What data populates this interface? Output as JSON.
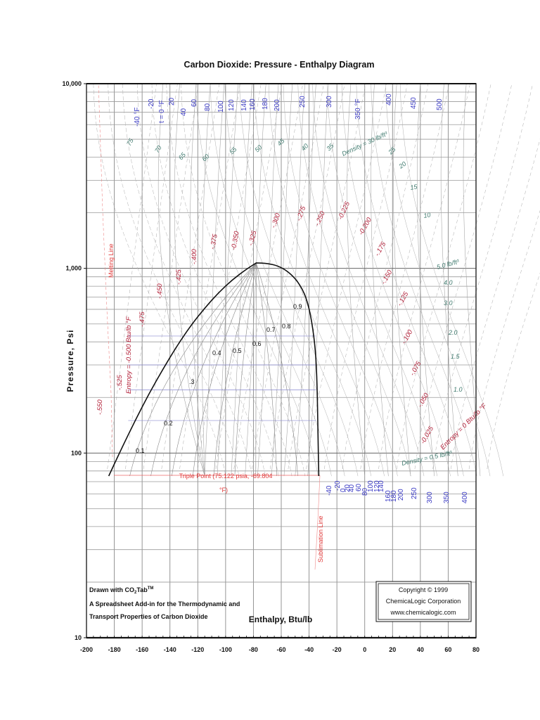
{
  "chart_data": {
    "type": "line",
    "title": "Carbon Dioxide: Pressure - Enthalpy Diagram",
    "xlabel": "Enthalpy, Btu/lb",
    "ylabel": "Pressure, Psi",
    "xlim": [
      -200,
      80
    ],
    "ylim": [
      10,
      10000
    ],
    "yscale": "log",
    "grid": true,
    "x_ticks": [
      "-200",
      "-180",
      "-160",
      "-140",
      "-120",
      "-100",
      "-80",
      "-60",
      "-40",
      "-20",
      "0",
      "20",
      "40",
      "60",
      "80"
    ],
    "y_ticks": [
      "10",
      "100",
      "1,000",
      "10,000"
    ],
    "saturation_dome": {
      "liquid": {
        "h": [
          -184,
          -175,
          -165,
          -155,
          -145,
          -135,
          -125,
          -115,
          -105,
          -95,
          -85,
          -78
        ],
        "P": [
          75.1,
          105,
          150,
          210,
          285,
          380,
          490,
          610,
          740,
          870,
          990,
          1070
        ]
      },
      "vapor": {
        "h": [
          -78,
          -70,
          -62,
          -55,
          -48,
          -42,
          -38,
          -35,
          -34,
          -33.5,
          -33
        ],
        "P": [
          1070,
          1065,
          1030,
          960,
          850,
          700,
          520,
          340,
          200,
          110,
          75.1
        ]
      }
    },
    "quality_labels": [
      "0.1",
      "0.2",
      ".3",
      "0.4",
      "0.5",
      "0.6",
      "0.7",
      "0.8",
      "0.9"
    ],
    "isotherm_labels_top": [
      "-40 °F",
      "-20",
      "t = 0 °F",
      "20",
      "40",
      "60",
      "80",
      "100",
      "120",
      "140",
      "160",
      "180",
      "200",
      "250",
      "300",
      "350 °F",
      "400",
      "450",
      "500"
    ],
    "isotherm_labels_bottom": [
      "-40",
      "-20",
      "0",
      "20",
      "40",
      "60",
      "80",
      "100",
      "120",
      "140",
      "160",
      "180",
      "200",
      "250",
      "300",
      "350",
      "400"
    ],
    "density_labels": [
      "75",
      "70",
      "65",
      "60",
      "55",
      "50",
      "45",
      "40",
      "35",
      "Density = 30 lb/ft³",
      "25",
      "20",
      "15",
      "10",
      "5.0 lb/ft³",
      "4.0",
      "3.0",
      "2.0",
      "1.5",
      "1.0",
      "Density = 0.5 lb/ft³"
    ],
    "entropy_labels": [
      "-.550",
      "-.525",
      "Entropy = -0.500 Btu/lb °F",
      "-.475",
      "-.450",
      "-.425",
      "-.400",
      "-.375",
      "-0.350",
      "-.325",
      "-.300",
      "-.275",
      "-.250",
      "-0.225",
      "-0.200",
      "-.175",
      "-.150",
      "-.125",
      "-.100",
      "-.075",
      "-.050",
      "-0.025",
      "Entropy = 0 Btu/lb °F"
    ],
    "annotations": [
      "Melting Line",
      "Sublimation Line",
      "Triple Point (75.122 psia, -69.804 °F)"
    ],
    "triple_point": {
      "P_psia": 75.122,
      "T_F": -69.804
    }
  },
  "footer": {
    "drawn_with_line1": "Drawn with CO",
    "drawn_with_sub": "2",
    "drawn_with_tab": "Tab",
    "drawn_with_tm": "TM",
    "drawn_with_line2": "A Spreadsheet Add-in for the Thermodynamic and",
    "drawn_with_line3": "Transport Properties of Carbon Dioxide",
    "copyright_line1": "Copyright © 1999",
    "copyright_line2": "ChemicaLogic Corporation",
    "copyright_line3": "www.chemicalogic.com"
  },
  "labels": {
    "melting_line": "Melting Line",
    "sublimation_line": "Sublimation Line",
    "triple_point_line1": "Triple Point (75.122 psia, -69.804",
    "triple_point_line2": "°F)",
    "entropy_left": "Entropy = -0.500 Btu/lb °F",
    "entropy_right": "Entropy = 0 Btu/lb °F",
    "density_top": "Density = 30 lb/ft³",
    "density_mid": "5.0 lb/ft³",
    "density_bottom": "Density = 0.5 lb/ft³"
  }
}
